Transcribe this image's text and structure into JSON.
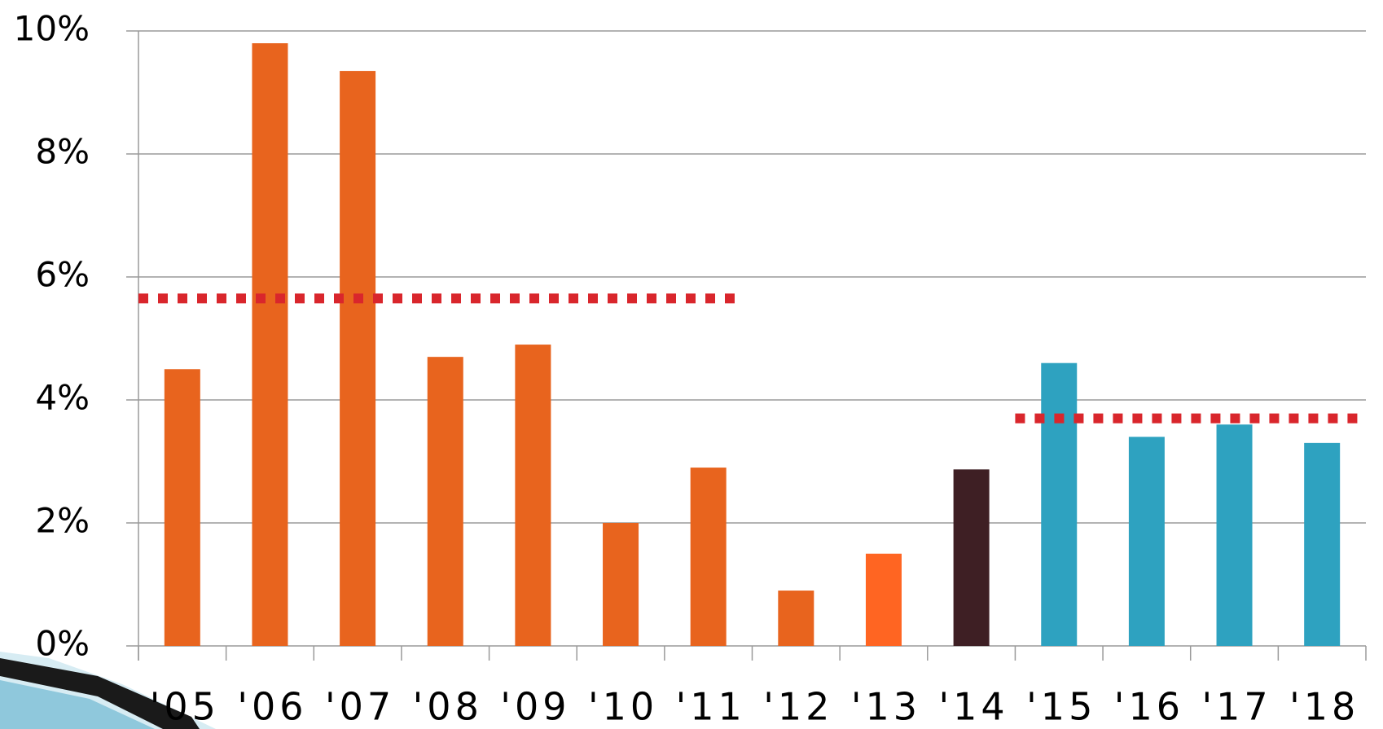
{
  "chart_data": {
    "type": "bar",
    "categories": [
      "'05",
      "'06",
      "'07",
      "'08",
      "'09",
      "'10",
      "'11",
      "'12",
      "'13",
      "'14",
      "'15",
      "'16",
      "'17",
      "'18"
    ],
    "values": [
      4.5,
      9.8,
      9.35,
      4.7,
      4.9,
      2.0,
      2.9,
      0.9,
      1.5,
      2.87,
      4.6,
      3.4,
      3.6,
      3.3
    ],
    "colors": [
      "#e8641e",
      "#e8641e",
      "#e8641e",
      "#e8641e",
      "#e8641e",
      "#e8641e",
      "#e8641e",
      "#e8641e",
      "#ff6522",
      "#3e1f24",
      "#2ea2c0",
      "#2ea2c0",
      "#2ea2c0",
      "#2ea2c0"
    ],
    "ylim": [
      0,
      10
    ],
    "yticks": [
      {
        "value": 0,
        "label": "0%"
      },
      {
        "value": 2,
        "label": "2%"
      },
      {
        "value": 4,
        "label": "4%"
      },
      {
        "value": 6,
        "label": "6%"
      },
      {
        "value": 8,
        "label": "8%"
      },
      {
        "value": 10,
        "label": "10%"
      }
    ],
    "grid": true,
    "reference_lines": [
      {
        "value": 5.65,
        "from": "'05",
        "to": "'11",
        "color": "#d9262c"
      },
      {
        "value": 3.7,
        "from": "'15",
        "to": "'18",
        "color": "#d9262c"
      }
    ]
  }
}
